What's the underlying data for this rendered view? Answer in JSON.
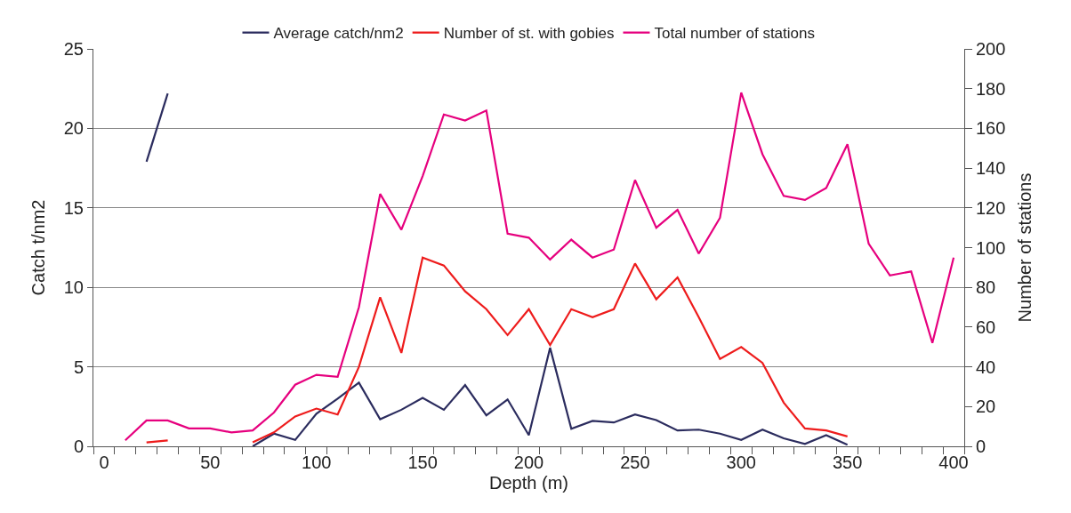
{
  "chart_data": {
    "type": "line",
    "xlabel": "Depth (m)",
    "ylabel": "Catch t/nm2",
    "y2label": "Number of stations",
    "x": [
      10,
      20,
      30,
      40,
      50,
      60,
      70,
      80,
      90,
      100,
      110,
      120,
      130,
      140,
      150,
      160,
      170,
      180,
      190,
      200,
      210,
      220,
      230,
      240,
      250,
      260,
      270,
      280,
      290,
      300,
      310,
      320,
      330,
      340,
      350,
      360,
      370,
      380,
      390,
      400
    ],
    "series": [
      {
        "name": "Average catch/nm2",
        "color": "#2b2c5e",
        "values": [
          null,
          17.9,
          22.2,
          null,
          null,
          null,
          0,
          0.8,
          0.4,
          2.05,
          3.0,
          4.0,
          1.7,
          2.3,
          3.05,
          2.3,
          3.85,
          1.95,
          2.95,
          0.7,
          6.2,
          1.1,
          1.6,
          1.5,
          2.0,
          1.65,
          1.0,
          1.05,
          0.8,
          0.4,
          1.05,
          0.5,
          0.15,
          0.7,
          0.1,
          null,
          null,
          null,
          null,
          null
        ]
      },
      {
        "name": "Number of st. with gobies",
        "color": "#ee1c1c",
        "axis": "y2",
        "values": [
          null,
          2,
          3,
          null,
          null,
          null,
          2,
          7,
          15,
          19,
          16,
          40,
          75,
          47,
          95,
          91,
          78,
          69,
          56,
          69,
          51,
          69,
          65,
          69,
          92,
          74,
          85,
          65,
          44,
          50,
          42,
          22,
          9,
          8,
          5,
          null,
          null,
          null,
          null,
          null
        ]
      },
      {
        "name": "Total number of stations",
        "color": "#e6007e",
        "axis": "y2",
        "values": [
          3,
          13,
          13,
          9,
          9,
          7,
          8,
          17,
          31,
          36,
          35,
          70,
          127,
          109,
          136,
          167,
          164,
          169,
          107,
          105,
          94,
          104,
          95,
          99,
          134,
          110,
          119,
          97,
          115,
          178,
          147,
          126,
          124,
          130,
          152,
          102,
          86,
          88,
          52,
          95
        ]
      }
    ],
    "xlim": [
      -5,
      405
    ],
    "xticks": [
      0,
      50,
      100,
      150,
      200,
      250,
      300,
      350,
      400,
      {
        "value": -5,
        "label": null
      },
      {
        "value": 5,
        "label": null
      },
      {
        "value": 15,
        "label": null
      },
      {
        "value": 25,
        "label": null
      },
      {
        "value": 35,
        "label": null
      },
      {
        "value": 45,
        "label": null
      },
      {
        "value": 55,
        "label": null
      },
      {
        "value": 65,
        "label": null
      },
      {
        "value": 75,
        "label": null
      },
      {
        "value": 85,
        "label": null
      },
      {
        "value": 95,
        "label": null
      },
      {
        "value": 105,
        "label": null
      },
      {
        "value": 115,
        "label": null
      },
      {
        "value": 125,
        "label": null
      },
      {
        "value": 135,
        "label": null
      },
      {
        "value": 145,
        "label": null
      },
      {
        "value": 155,
        "label": null
      },
      {
        "value": 165,
        "label": null
      },
      {
        "value": 175,
        "label": null
      },
      {
        "value": 185,
        "label": null
      },
      {
        "value": 195,
        "label": null
      },
      {
        "value": 205,
        "label": null
      },
      {
        "value": 215,
        "label": null
      },
      {
        "value": 225,
        "label": null
      },
      {
        "value": 235,
        "label": null
      },
      {
        "value": 245,
        "label": null
      },
      {
        "value": 255,
        "label": null
      },
      {
        "value": 265,
        "label": null
      },
      {
        "value": 275,
        "label": null
      },
      {
        "value": 285,
        "label": null
      },
      {
        "value": 295,
        "label": null
      },
      {
        "value": 305,
        "label": null
      },
      {
        "value": 315,
        "label": null
      },
      {
        "value": 325,
        "label": null
      },
      {
        "value": 335,
        "label": null
      },
      {
        "value": 345,
        "label": null
      },
      {
        "value": 355,
        "label": null
      },
      {
        "value": 365,
        "label": null
      },
      {
        "value": 375,
        "label": null
      },
      {
        "value": 385,
        "label": null
      },
      {
        "value": 395,
        "label": null
      },
      {
        "value": 405,
        "label": null
      }
    ],
    "ylim": [
      0,
      25
    ],
    "yticks": [
      0,
      5,
      10,
      15,
      20,
      25
    ],
    "y2lim": [
      0,
      200
    ],
    "y2ticks": [
      0,
      20,
      40,
      60,
      80,
      100,
      120,
      140,
      160,
      180,
      200
    ],
    "grid": "y",
    "legend": "top",
    "marker": "none",
    "line_style": "solid"
  }
}
